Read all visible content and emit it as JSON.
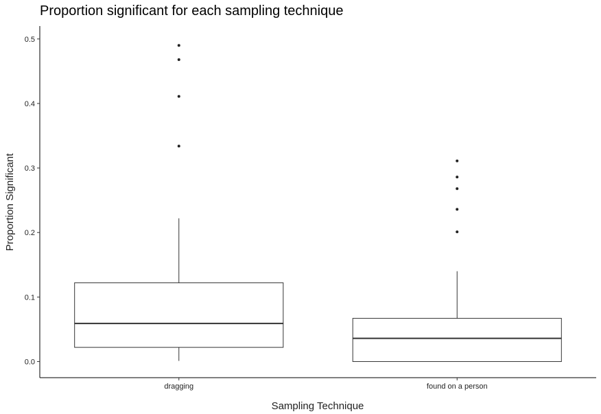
{
  "chart_data": {
    "type": "boxplot",
    "title": "Proportion significant for each sampling technique",
    "xlabel": "Sampling Technique",
    "ylabel": "Proportion Significant",
    "ylim": [
      -0.025,
      0.52
    ],
    "yticks": [
      0.0,
      0.1,
      0.2,
      0.3,
      0.4,
      0.5
    ],
    "ytick_labels": [
      "0.0",
      "0.1",
      "0.2",
      "0.3",
      "0.4",
      "0.5"
    ],
    "grid": false,
    "categories": [
      "dragging",
      "found on a person"
    ],
    "boxes": [
      {
        "category": "dragging",
        "whisker_low": 0.001,
        "q1": 0.022,
        "median": 0.059,
        "q3": 0.122,
        "whisker_high": 0.222,
        "outliers": [
          0.334,
          0.411,
          0.468,
          0.49
        ]
      },
      {
        "category": "found on a person",
        "whisker_low": 0.0,
        "q1": 0.0,
        "median": 0.036,
        "q3": 0.067,
        "whisker_high": 0.14,
        "outliers": [
          0.201,
          0.236,
          0.268,
          0.286,
          0.311
        ]
      }
    ],
    "colors": {
      "box_fill": "#ffffff",
      "box_stroke": "#333333",
      "outlier": "#222222"
    }
  }
}
